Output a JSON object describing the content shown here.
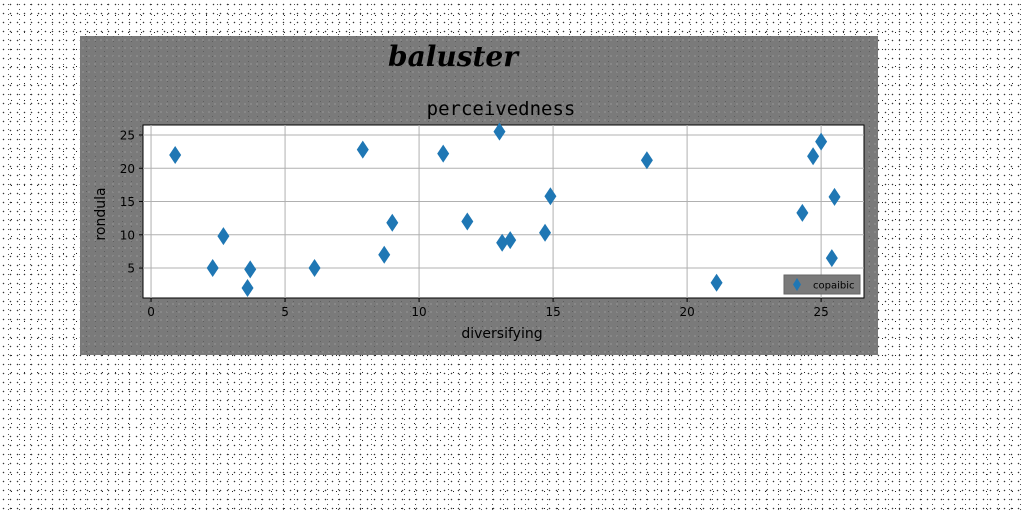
{
  "chart_data": {
    "type": "scatter",
    "suptitle": "baluster",
    "title": "perceivedness",
    "xlabel": "diversifying",
    "ylabel": "rondula",
    "xlim": [
      -0.3,
      26.6
    ],
    "ylim": [
      0.5,
      26.5
    ],
    "xticks": [
      0,
      5,
      10,
      15,
      20,
      25
    ],
    "yticks": [
      5,
      10,
      15,
      20,
      25
    ],
    "grid": true,
    "legend": "lower right",
    "series": [
      {
        "name": "copaibic",
        "color": "#1f77b4",
        "marker": "diamond",
        "x": [
          0.9,
          2.3,
          2.7,
          3.6,
          3.7,
          6.1,
          7.9,
          8.7,
          9.0,
          10.9,
          11.8,
          13.0,
          13.1,
          13.4,
          14.7,
          14.9,
          18.5,
          21.1,
          24.3,
          24.7,
          25.0,
          25.4,
          25.5
        ],
        "y": [
          22.0,
          5.0,
          9.8,
          2.0,
          4.8,
          5.0,
          22.8,
          7.0,
          11.8,
          22.2,
          12.0,
          25.5,
          8.8,
          9.2,
          10.3,
          15.8,
          21.2,
          2.8,
          13.3,
          21.8,
          24.0,
          6.5,
          15.7
        ]
      }
    ]
  }
}
